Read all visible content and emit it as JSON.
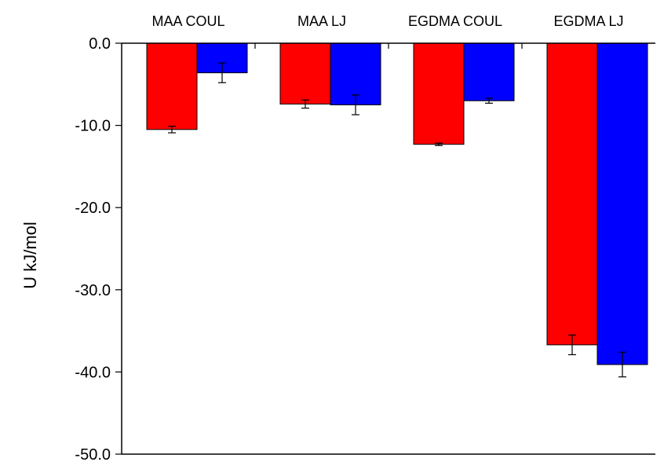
{
  "chart_data": {
    "type": "bar",
    "categories": [
      "MAA COUL",
      "MAA LJ",
      "EGDMA COUL",
      "EGDMA LJ"
    ],
    "series": [
      {
        "color": "#ff0000",
        "values": [
          -10.5,
          -7.4,
          -12.3,
          -36.7
        ],
        "errors": [
          0.4,
          0.5,
          0.15,
          1.2
        ]
      },
      {
        "color": "#0000ff",
        "values": [
          -3.6,
          -7.5,
          -7.0,
          -39.1
        ],
        "errors": [
          1.2,
          1.2,
          0.3,
          1.5
        ]
      }
    ],
    "ylabel": "U  kJ/mol",
    "ylim": [
      -50,
      0
    ],
    "yticks": [
      0,
      -10,
      -20,
      -30,
      -40,
      -50
    ],
    "ytick_labels": [
      "0.0",
      "-10.0",
      "-20.0",
      "-30.0",
      "-40.0",
      "-50.0"
    ],
    "category_axis_position": "top",
    "grid": false,
    "legend": "none"
  }
}
